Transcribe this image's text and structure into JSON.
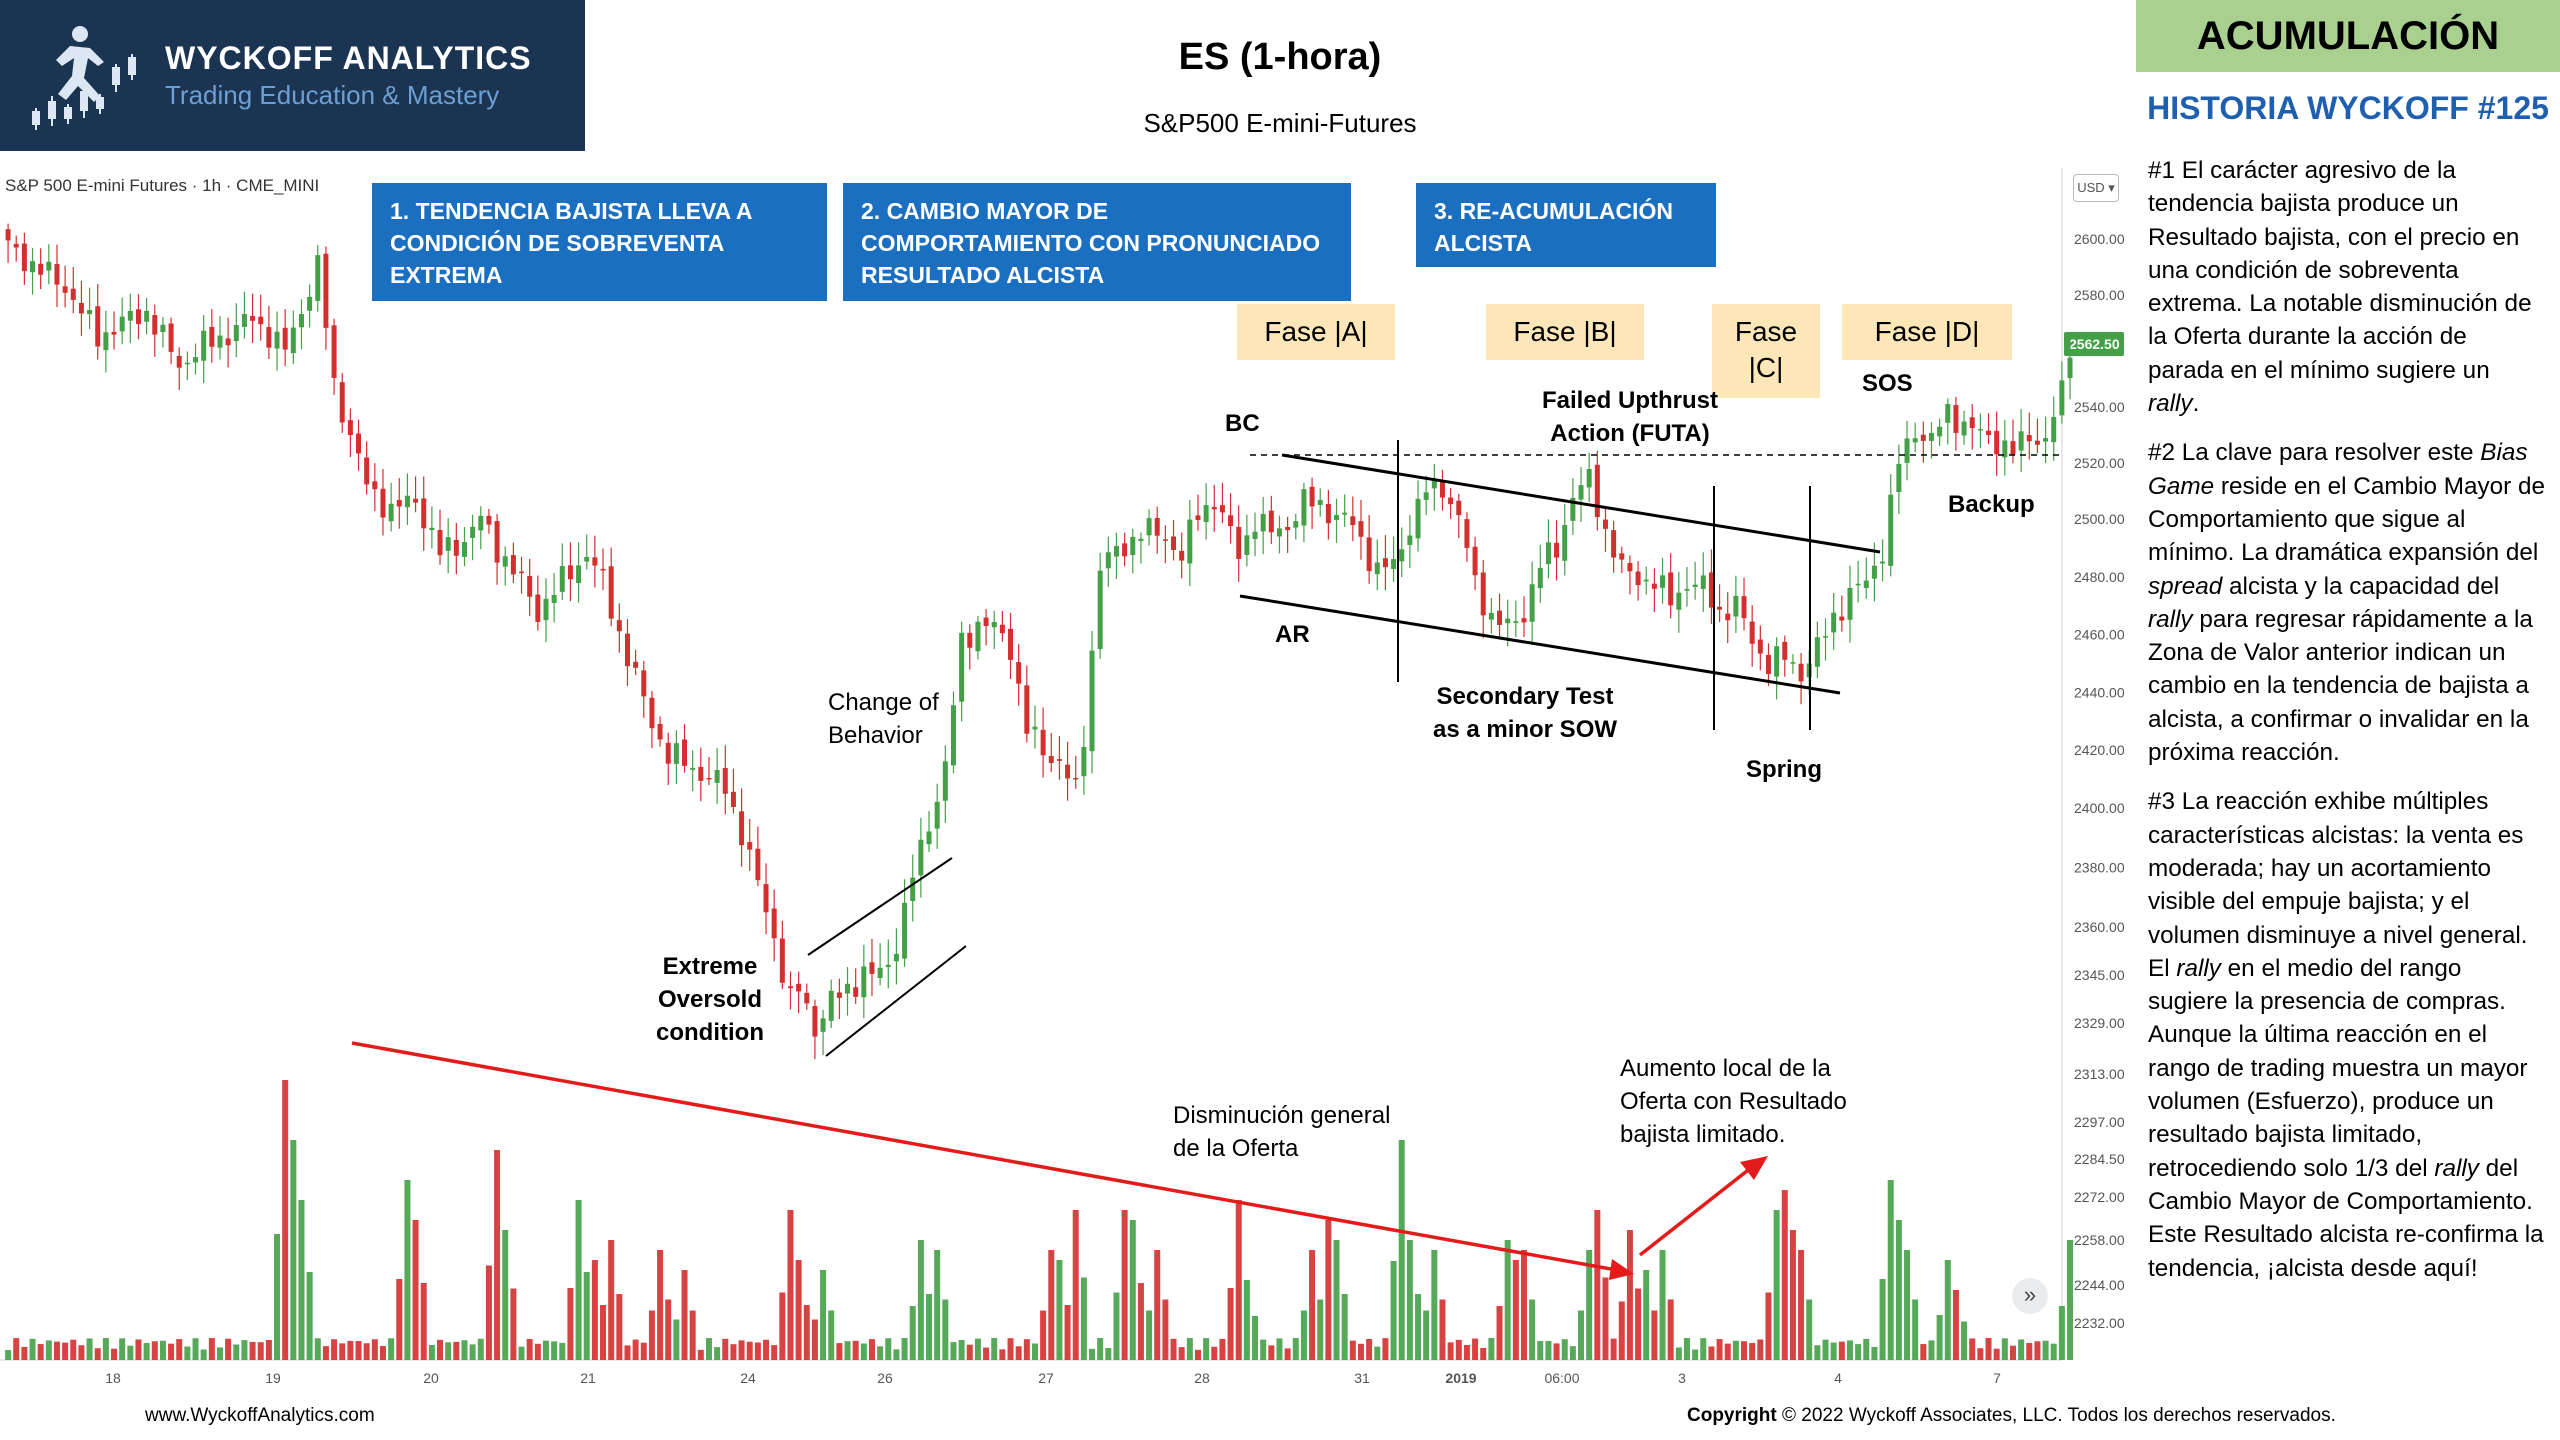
{
  "logo": {
    "title": "WYCKOFF ANALYTICS",
    "subtitle": "Trading Education & Mastery"
  },
  "title": "ES (1-hora)",
  "subtitle": "S&P500 E-mini-Futures",
  "badge": "ACUMULACIÓN",
  "historia": "HISTORIA WYCKOFF #125",
  "paragraphs": [
    [
      {
        "t": "#1 El carácter agresivo de la tendencia bajista produce un Resultado bajista, con el precio en una condición de sobreventa extrema. La notable disminución de la Oferta durante la acción de parada en el mínimo sugiere un "
      },
      {
        "t": "rally",
        "i": true
      },
      {
        "t": "."
      }
    ],
    [
      {
        "t": "#2 La clave para resolver este "
      },
      {
        "t": "Bias Game",
        "i": true
      },
      {
        "t": " reside en el Cambio Mayor de Comportamiento que sigue al mínimo. La dramática expansión del "
      },
      {
        "t": "spread",
        "i": true
      },
      {
        "t": " alcista y la capacidad del "
      },
      {
        "t": "rally",
        "i": true
      },
      {
        "t": " para regresar rápidamente a la Zona de Valor anterior indican un cambio en la tendencia de bajista a alcista, a confirmar o invalidar en la próxima reacción."
      }
    ],
    [
      {
        "t": "#3 La reacción exhibe múltiples características alcistas: la venta es moderada; hay un acortamiento visible del empuje bajista; y el volumen disminuye  a nivel general. El "
      },
      {
        "t": "rally",
        "i": true
      },
      {
        "t": " en el medio del rango sugiere la presencia de compras. Aunque la última reacción en el rango de trading muestra un mayor volumen (Esfuerzo), produce un resultado bajista limitado, retrocediendo solo 1/3 del "
      },
      {
        "t": "rally",
        "i": true
      },
      {
        "t": " del Cambio Mayor de Comportamiento. Este Resultado alcista re-confirma la tendencia, ¡alcista desde aquí!"
      }
    ]
  ],
  "chart_header": "S&P 500 E-mini Futures · 1h · CME_MINI",
  "currency": "USD",
  "top_boxes": [
    "1. TENDENCIA BAJISTA LLEVA A CONDICIÓN DE SOBREVENTA EXTREMA",
    "2. CAMBIO MAYOR DE COMPORTAMIENTO CON PRONUNCIADO RESULTADO ALCISTA",
    "3. RE-ACUMULACIÓN ALCISTA"
  ],
  "phases": {
    "a": "Fase |A|",
    "b": "Fase |B|",
    "c1": "Fase",
    "c2": "|C|",
    "d": "Fase |D|"
  },
  "annotations": {
    "bc": "BC",
    "ar": "AR",
    "futa1": "Failed Upthrust",
    "futa2": "Action (FUTA)",
    "sos": "SOS",
    "backup": "Backup",
    "st1": "Secondary Test",
    "st2": "as a minor SOW",
    "spring": "Spring",
    "cob1": "Change of",
    "cob2": "Behavior",
    "eo1": "Extreme",
    "eo2": "Oversold",
    "eo3": "condition",
    "dis1": "Disminución general",
    "dis2": "de la Oferta",
    "aum1": "Aumento local de la",
    "aum2": "Oferta con Resultado",
    "aum3": "bajista limitado."
  },
  "footer": {
    "left": "www.WyckoffAnalytics.com",
    "right_bold": "Copyright",
    "right": " © 2022 Wyckoff Associates,  LLC. Todos  los derechos  reservados."
  },
  "colors": {
    "up": "#43a047",
    "down": "#d32f2f",
    "box": "#1a6fc0",
    "phase": "#fde7b8",
    "badge": "#a9d08e",
    "logo_bg": "#1a3452",
    "arrow": "#e31b1b"
  },
  "chart_data": {
    "type": "candlestick",
    "ylim": [
      2232,
      2610
    ],
    "y_ticks": [
      2232,
      2244,
      2258,
      2272,
      2284.5,
      2297,
      2313,
      2329,
      2345,
      2360,
      2380,
      2400,
      2420,
      2440,
      2460,
      2480,
      2500,
      2520,
      2540,
      2560,
      2580,
      2600
    ],
    "last_price": "2562.50",
    "x_ticks": [
      "18",
      "19",
      "20",
      "21",
      "24",
      "26",
      "27",
      "28",
      "31",
      "2019",
      "06:00",
      "3",
      "4",
      "7"
    ],
    "price_path": [
      [
        0,
        2597
      ],
      [
        7,
        2583
      ],
      [
        11,
        2565
      ],
      [
        14,
        2570
      ],
      [
        17,
        2574
      ],
      [
        21,
        2555
      ],
      [
        24,
        2562
      ],
      [
        27,
        2566
      ],
      [
        30,
        2572
      ],
      [
        34,
        2560
      ],
      [
        38,
        2590
      ],
      [
        40,
        2548
      ],
      [
        44,
        2512
      ],
      [
        47,
        2503
      ],
      [
        50,
        2507
      ],
      [
        53,
        2488
      ],
      [
        56,
        2493
      ],
      [
        58,
        2500
      ],
      [
        60,
        2490
      ],
      [
        63,
        2478
      ],
      [
        65,
        2468
      ],
      [
        69,
        2482
      ],
      [
        71,
        2488
      ],
      [
        73,
        2478
      ],
      [
        76,
        2452
      ],
      [
        79,
        2430
      ],
      [
        81,
        2418
      ],
      [
        83,
        2416
      ],
      [
        85,
        2412
      ],
      [
        88,
        2407
      ],
      [
        90,
        2392
      ],
      [
        92,
        2374
      ],
      [
        94,
        2357
      ],
      [
        96,
        2336
      ],
      [
        97,
        2340
      ],
      [
        99,
        2328
      ],
      [
        101,
        2336
      ],
      [
        103,
        2340
      ],
      [
        105,
        2346
      ],
      [
        106,
        2344
      ],
      [
        108,
        2348
      ],
      [
        110,
        2365
      ],
      [
        111,
        2377
      ],
      [
        113,
        2395
      ],
      [
        115,
        2414
      ],
      [
        117,
        2457
      ],
      [
        119,
        2464
      ],
      [
        121,
        2462
      ],
      [
        123,
        2456
      ],
      [
        125,
        2427
      ],
      [
        127,
        2420
      ],
      [
        129,
        2416
      ],
      [
        131,
        2405
      ],
      [
        132,
        2425
      ],
      [
        134,
        2484
      ],
      [
        136,
        2488
      ],
      [
        139,
        2496
      ],
      [
        142,
        2494
      ],
      [
        144,
        2487
      ],
      [
        146,
        2502
      ],
      [
        148,
        2507
      ],
      [
        151,
        2488
      ],
      [
        153,
        2500
      ],
      [
        155,
        2495
      ],
      [
        157,
        2498
      ],
      [
        159,
        2506
      ],
      [
        161,
        2505
      ],
      [
        163,
        2501
      ],
      [
        165,
        2498
      ],
      [
        168,
        2482
      ],
      [
        170,
        2484
      ],
      [
        172,
        2498
      ],
      [
        174,
        2510
      ],
      [
        176,
        2512
      ],
      [
        178,
        2500
      ],
      [
        180,
        2478
      ],
      [
        182,
        2466
      ],
      [
        184,
        2462
      ],
      [
        186,
        2468
      ],
      [
        188,
        2484
      ],
      [
        190,
        2490
      ],
      [
        192,
        2508
      ],
      [
        194,
        2514
      ],
      [
        196,
        2496
      ],
      [
        198,
        2482
      ],
      [
        200,
        2480
      ],
      [
        202,
        2478
      ],
      [
        204,
        2472
      ],
      [
        206,
        2478
      ],
      [
        208,
        2476
      ],
      [
        210,
        2468
      ],
      [
        212,
        2470
      ],
      [
        214,
        2458
      ],
      [
        216,
        2450
      ],
      [
        218,
        2452
      ],
      [
        220,
        2447
      ],
      [
        222,
        2455
      ],
      [
        224,
        2466
      ],
      [
        226,
        2474
      ],
      [
        228,
        2478
      ],
      [
        230,
        2490
      ],
      [
        232,
        2520
      ],
      [
        234,
        2532
      ],
      [
        236,
        2528
      ],
      [
        238,
        2538
      ],
      [
        240,
        2534
      ],
      [
        242,
        2530
      ],
      [
        244,
        2528
      ],
      [
        246,
        2524
      ],
      [
        248,
        2530
      ],
      [
        250,
        2528
      ],
      [
        252,
        2545
      ],
      [
        253,
        2562
      ]
    ]
  }
}
